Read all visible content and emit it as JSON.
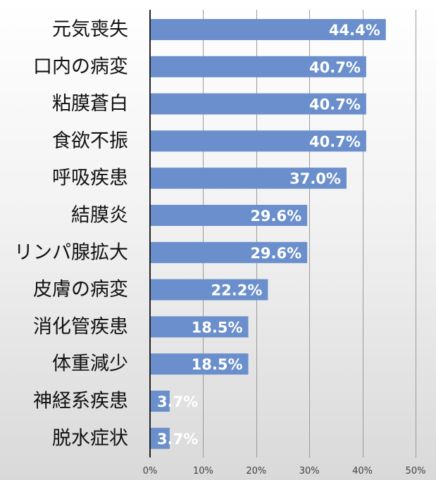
{
  "chart_data": {
    "type": "bar",
    "orientation": "horizontal",
    "categories": [
      "元気喪失",
      "口内の病変",
      "粘膜蒼白",
      "食欲不振",
      "呼吸疾患",
      "結膜炎",
      "リンパ腺拡大",
      "皮膚の病変",
      "消化管疾患",
      "体重減少",
      "神経系疾患",
      "脱水症状"
    ],
    "values": [
      44.4,
      40.7,
      40.7,
      40.7,
      37.0,
      29.6,
      29.6,
      22.2,
      18.5,
      18.5,
      3.7,
      3.7
    ],
    "value_labels": [
      "44.4%",
      "40.7%",
      "40.7%",
      "40.7%",
      "37.0%",
      "29.6%",
      "29.6%",
      "22.2%",
      "18.5%",
      "18.5%",
      "3.7%",
      "3.7%"
    ],
    "xlim": [
      0,
      50
    ],
    "ticks": [
      0,
      10,
      20,
      30,
      40,
      50
    ],
    "tick_labels": [
      "0%",
      "10%",
      "20%",
      "30%",
      "40%",
      "50%"
    ],
    "title": "",
    "xlabel": "",
    "ylabel": "",
    "grid": true,
    "legend": false,
    "colors": {
      "bar": "#6a8fcc",
      "data_label": "#ffffff",
      "category_text": "#111111",
      "tick_text": "#404040",
      "grid": "#9a9a9a",
      "axis": "#222222"
    }
  }
}
